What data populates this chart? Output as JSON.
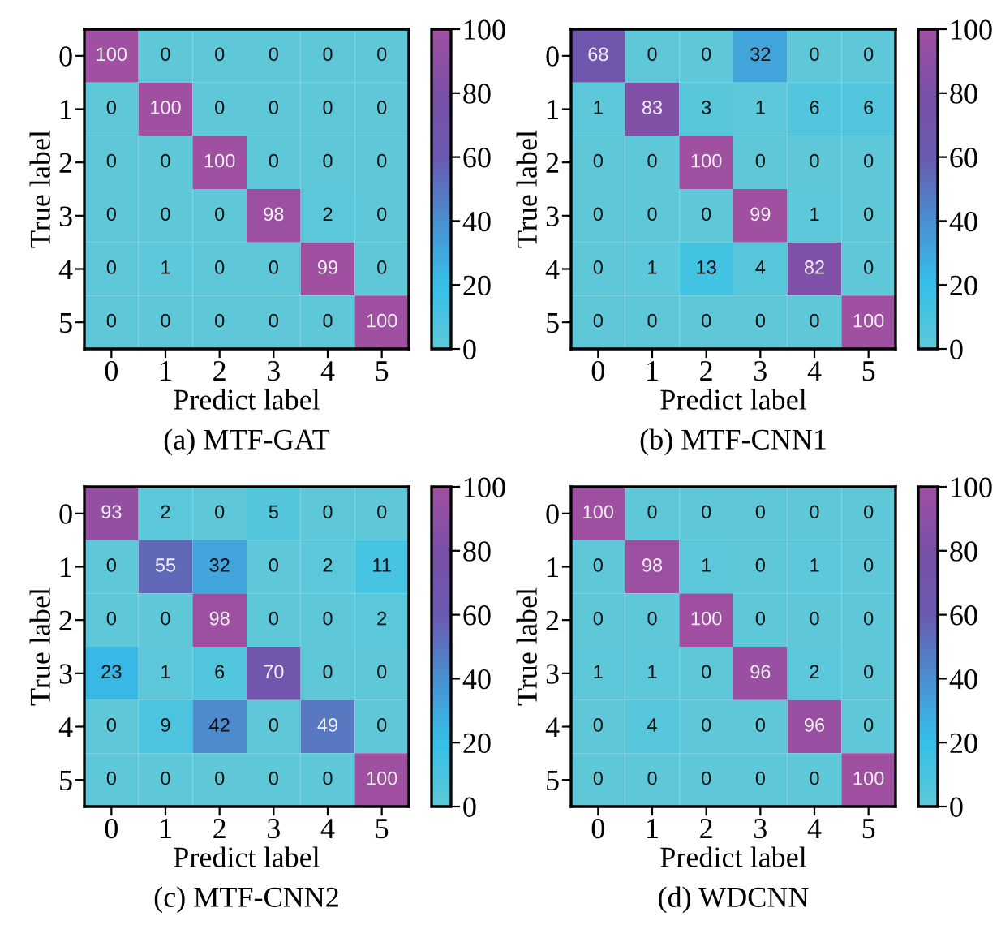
{
  "chart_data": [
    {
      "type": "heatmap",
      "title": "(a) MTF-GAT",
      "xlabel": "Predict label",
      "ylabel": "True label",
      "categories": [
        "0",
        "1",
        "2",
        "3",
        "4",
        "5"
      ],
      "y_categories": [
        "0",
        "1",
        "2",
        "3",
        "4",
        "5"
      ],
      "cells": [
        [
          100,
          0,
          0,
          0,
          0,
          0
        ],
        [
          0,
          100,
          0,
          0,
          0,
          0
        ],
        [
          0,
          0,
          100,
          0,
          0,
          0
        ],
        [
          0,
          0,
          0,
          98,
          2,
          0
        ],
        [
          0,
          1,
          0,
          0,
          99,
          0
        ],
        [
          0,
          0,
          0,
          0,
          0,
          100
        ]
      ],
      "clim": [
        0,
        100
      ],
      "cticks": [
        0,
        20,
        40,
        60,
        80,
        100
      ],
      "data_labels": true
    },
    {
      "type": "heatmap",
      "title": "(b) MTF-CNN1",
      "xlabel": "Predict label",
      "ylabel": "True label",
      "categories": [
        "0",
        "1",
        "2",
        "3",
        "4",
        "5"
      ],
      "y_categories": [
        "0",
        "1",
        "2",
        "3",
        "4",
        "5"
      ],
      "cells": [
        [
          68,
          0,
          0,
          32,
          0,
          0
        ],
        [
          1,
          83,
          3,
          1,
          6,
          6
        ],
        [
          0,
          0,
          100,
          0,
          0,
          0
        ],
        [
          0,
          0,
          0,
          99,
          1,
          0
        ],
        [
          0,
          1,
          13,
          4,
          82,
          0
        ],
        [
          0,
          0,
          0,
          0,
          0,
          100
        ]
      ],
      "clim": [
        0,
        100
      ],
      "cticks": [
        0,
        20,
        40,
        60,
        80,
        100
      ],
      "data_labels": true
    },
    {
      "type": "heatmap",
      "title": "(c) MTF-CNN2",
      "xlabel": "Predict label",
      "ylabel": "True label",
      "categories": [
        "0",
        "1",
        "2",
        "3",
        "4",
        "5"
      ],
      "y_categories": [
        "0",
        "1",
        "2",
        "3",
        "4",
        "5"
      ],
      "cells": [
        [
          93,
          2,
          0,
          5,
          0,
          0
        ],
        [
          0,
          55,
          32,
          0,
          2,
          11
        ],
        [
          0,
          0,
          98,
          0,
          0,
          2
        ],
        [
          23,
          1,
          6,
          70,
          0,
          0
        ],
        [
          0,
          9,
          42,
          0,
          49,
          0
        ],
        [
          0,
          0,
          0,
          0,
          0,
          100
        ]
      ],
      "clim": [
        0,
        100
      ],
      "cticks": [
        0,
        20,
        40,
        60,
        80,
        100
      ],
      "data_labels": true
    },
    {
      "type": "heatmap",
      "title": "(d) WDCNN",
      "xlabel": "Predict label",
      "ylabel": "True label",
      "categories": [
        "0",
        "1",
        "2",
        "3",
        "4",
        "5"
      ],
      "y_categories": [
        "0",
        "1",
        "2",
        "3",
        "4",
        "5"
      ],
      "cells": [
        [
          100,
          0,
          0,
          0,
          0,
          0
        ],
        [
          0,
          98,
          1,
          0,
          1,
          0
        ],
        [
          0,
          0,
          100,
          0,
          0,
          0
        ],
        [
          1,
          1,
          0,
          96,
          2,
          0
        ],
        [
          0,
          4,
          0,
          0,
          96,
          0
        ],
        [
          0,
          0,
          0,
          0,
          0,
          100
        ]
      ],
      "clim": [
        0,
        100
      ],
      "cticks": [
        0,
        20,
        40,
        60,
        80,
        100
      ],
      "data_labels": true
    }
  ]
}
